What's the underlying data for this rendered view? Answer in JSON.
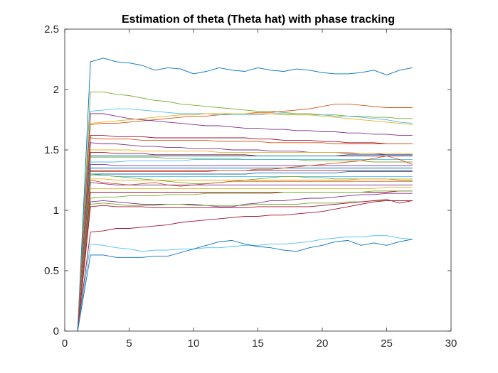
{
  "chart_data": {
    "type": "line",
    "title": "Estimation of theta (Theta hat) with phase tracking",
    "xlabel": "",
    "ylabel": "",
    "xlim": [
      0,
      30
    ],
    "ylim": [
      0,
      2.5
    ],
    "xticks": [
      0,
      5,
      10,
      15,
      20,
      25,
      30
    ],
    "yticks": [
      0,
      0.5,
      1,
      1.5,
      2,
      2.5
    ],
    "xtick_labels": [
      "0",
      "5",
      "10",
      "15",
      "20",
      "25",
      "30"
    ],
    "ytick_labels": [
      "0",
      "0.5",
      "1",
      "1.5",
      "2",
      "2.5"
    ],
    "grid": false,
    "legend": "none",
    "x": [
      1,
      2,
      3,
      4,
      5,
      6,
      7,
      8,
      9,
      10,
      11,
      12,
      13,
      14,
      15,
      16,
      17,
      18,
      19,
      20,
      21,
      22,
      23,
      24,
      25,
      26,
      27
    ],
    "series": [
      {
        "color": "#0072BD",
        "values": [
          0,
          2.23,
          2.26,
          2.23,
          2.22,
          2.2,
          2.16,
          2.18,
          2.17,
          2.13,
          2.15,
          2.18,
          2.16,
          2.15,
          2.18,
          2.16,
          2.15,
          2.17,
          2.16,
          2.14,
          2.13,
          2.13,
          2.14,
          2.16,
          2.12,
          2.16,
          2.18
        ]
      },
      {
        "color": "#77AC30",
        "values": [
          0,
          1.98,
          1.98,
          1.96,
          1.95,
          1.93,
          1.91,
          1.9,
          1.88,
          1.87,
          1.86,
          1.85,
          1.84,
          1.83,
          1.82,
          1.82,
          1.81,
          1.8,
          1.8,
          1.79,
          1.79,
          1.78,
          1.78,
          1.77,
          1.77,
          1.76,
          1.76
        ]
      },
      {
        "color": "#D95319",
        "values": [
          0,
          1.71,
          1.72,
          1.72,
          1.73,
          1.74,
          1.75,
          1.76,
          1.77,
          1.78,
          1.78,
          1.79,
          1.8,
          1.8,
          1.81,
          1.81,
          1.82,
          1.83,
          1.84,
          1.86,
          1.88,
          1.88,
          1.87,
          1.86,
          1.85,
          1.85,
          1.85
        ]
      },
      {
        "color": "#4DBEEE",
        "values": [
          0,
          1.82,
          1.83,
          1.84,
          1.84,
          1.83,
          1.82,
          1.81,
          1.8,
          1.8,
          1.8,
          1.79,
          1.79,
          1.79,
          1.79,
          1.8,
          1.8,
          1.79,
          1.79,
          1.79,
          1.78,
          1.78,
          1.77,
          1.76,
          1.75,
          1.73,
          1.72
        ]
      },
      {
        "color": "#7E2F8E",
        "values": [
          0,
          1.8,
          1.8,
          1.78,
          1.76,
          1.75,
          1.74,
          1.73,
          1.72,
          1.71,
          1.7,
          1.7,
          1.69,
          1.68,
          1.68,
          1.67,
          1.67,
          1.66,
          1.66,
          1.65,
          1.65,
          1.64,
          1.64,
          1.63,
          1.63,
          1.62,
          1.62
        ]
      },
      {
        "color": "#EDB120",
        "values": [
          0,
          1.72,
          1.73,
          1.74,
          1.75,
          1.76,
          1.77,
          1.78,
          1.79,
          1.79,
          1.8,
          1.8,
          1.8,
          1.8,
          1.8,
          1.8,
          1.79,
          1.79,
          1.79,
          1.78,
          1.77,
          1.76,
          1.75,
          1.74,
          1.73,
          1.72,
          1.71
        ]
      },
      {
        "color": "#A2142F",
        "values": [
          0,
          1.62,
          1.62,
          1.61,
          1.61,
          1.61,
          1.6,
          1.6,
          1.6,
          1.6,
          1.6,
          1.6,
          1.6,
          1.6,
          1.59,
          1.59,
          1.58,
          1.58,
          1.58,
          1.57,
          1.57,
          1.56,
          1.56,
          1.56,
          1.55,
          1.55,
          1.55
        ]
      },
      {
        "color": "#D95319",
        "values": [
          0,
          1.6,
          1.59,
          1.59,
          1.59,
          1.58,
          1.58,
          1.58,
          1.58,
          1.58,
          1.58,
          1.57,
          1.57,
          1.57,
          1.57,
          1.56,
          1.56,
          1.56,
          1.56,
          1.56,
          1.55,
          1.55,
          1.55,
          1.55,
          1.55,
          1.55,
          1.55
        ]
      },
      {
        "color": "#7E2F8E",
        "values": [
          0,
          1.56,
          1.55,
          1.55,
          1.54,
          1.53,
          1.53,
          1.52,
          1.52,
          1.51,
          1.51,
          1.51,
          1.5,
          1.5,
          1.5,
          1.49,
          1.49,
          1.49,
          1.48,
          1.48,
          1.48,
          1.47,
          1.47,
          1.47,
          1.46,
          1.46,
          1.46
        ]
      },
      {
        "color": "#EDB120",
        "values": [
          0,
          1.5,
          1.5,
          1.5,
          1.5,
          1.49,
          1.49,
          1.49,
          1.49,
          1.49,
          1.49,
          1.48,
          1.48,
          1.48,
          1.48,
          1.48,
          1.48,
          1.48,
          1.48,
          1.48,
          1.48,
          1.48,
          1.47,
          1.47,
          1.47,
          1.47,
          1.47
        ]
      },
      {
        "color": "#A2142F",
        "values": [
          0,
          1.48,
          1.48,
          1.47,
          1.47,
          1.47,
          1.46,
          1.46,
          1.46,
          1.46,
          1.46,
          1.46,
          1.46,
          1.46,
          1.45,
          1.45,
          1.45,
          1.45,
          1.45,
          1.45,
          1.45,
          1.45,
          1.45,
          1.45,
          1.45,
          1.45,
          1.45
        ]
      },
      {
        "color": "#0072BD",
        "values": [
          0,
          1.45,
          1.45,
          1.45,
          1.45,
          1.45,
          1.45,
          1.45,
          1.45,
          1.45,
          1.45,
          1.45,
          1.45,
          1.45,
          1.45,
          1.45,
          1.45,
          1.45,
          1.45,
          1.45,
          1.45,
          1.46,
          1.46,
          1.46,
          1.46,
          1.46,
          1.46
        ]
      },
      {
        "color": "#77AC30",
        "values": [
          0,
          1.44,
          1.44,
          1.44,
          1.44,
          1.44,
          1.44,
          1.43,
          1.43,
          1.43,
          1.43,
          1.43,
          1.43,
          1.42,
          1.42,
          1.42,
          1.42,
          1.42,
          1.41,
          1.41,
          1.41,
          1.41,
          1.41,
          1.4,
          1.4,
          1.4,
          1.4
        ]
      },
      {
        "color": "#4DBEEE",
        "values": [
          0,
          1.4,
          1.4,
          1.4,
          1.41,
          1.41,
          1.41,
          1.41,
          1.41,
          1.42,
          1.42,
          1.42,
          1.42,
          1.42,
          1.42,
          1.42,
          1.42,
          1.42,
          1.42,
          1.42,
          1.42,
          1.42,
          1.42,
          1.42,
          1.42,
          1.42,
          1.42
        ]
      },
      {
        "color": "#7E2F8E",
        "values": [
          0,
          1.38,
          1.38,
          1.37,
          1.37,
          1.37,
          1.37,
          1.37,
          1.37,
          1.37,
          1.37,
          1.37,
          1.37,
          1.37,
          1.37,
          1.37,
          1.37,
          1.37,
          1.37,
          1.37,
          1.37,
          1.37,
          1.37,
          1.37,
          1.37,
          1.37,
          1.37
        ]
      },
      {
        "color": "#0072BD",
        "values": [
          0,
          1.35,
          1.35,
          1.35,
          1.35,
          1.35,
          1.35,
          1.35,
          1.35,
          1.35,
          1.35,
          1.35,
          1.35,
          1.35,
          1.35,
          1.35,
          1.35,
          1.35,
          1.35,
          1.35,
          1.35,
          1.35,
          1.35,
          1.35,
          1.35,
          1.35,
          1.35
        ]
      },
      {
        "color": "#A2142F",
        "values": [
          0,
          1.33,
          1.33,
          1.33,
          1.33,
          1.33,
          1.33,
          1.33,
          1.33,
          1.33,
          1.33,
          1.33,
          1.33,
          1.33,
          1.33,
          1.33,
          1.33,
          1.33,
          1.33,
          1.33,
          1.33,
          1.33,
          1.33,
          1.33,
          1.33,
          1.33,
          1.33
        ]
      },
      {
        "color": "#D95319",
        "values": [
          0,
          1.32,
          1.32,
          1.32,
          1.32,
          1.32,
          1.32,
          1.32,
          1.32,
          1.32,
          1.32,
          1.33,
          1.33,
          1.33,
          1.34,
          1.34,
          1.35,
          1.36,
          1.37,
          1.38,
          1.39,
          1.4,
          1.41,
          1.43,
          1.45,
          1.42,
          1.38
        ]
      },
      {
        "color": "#0072BD",
        "values": [
          0,
          1.3,
          1.3,
          1.3,
          1.3,
          1.3,
          1.3,
          1.3,
          1.3,
          1.3,
          1.3,
          1.3,
          1.3,
          1.3,
          1.31,
          1.31,
          1.31,
          1.31,
          1.31,
          1.31,
          1.31,
          1.32,
          1.32,
          1.32,
          1.32,
          1.32,
          1.32
        ]
      },
      {
        "color": "#4DBEEE",
        "values": [
          0,
          1.29,
          1.29,
          1.28,
          1.28,
          1.28,
          1.28,
          1.28,
          1.28,
          1.28,
          1.28,
          1.28,
          1.28,
          1.28,
          1.28,
          1.28,
          1.28,
          1.28,
          1.28,
          1.28,
          1.28,
          1.28,
          1.28,
          1.28,
          1.28,
          1.28,
          1.28
        ]
      },
      {
        "color": "#77AC30",
        "values": [
          0,
          1.3,
          1.29,
          1.28,
          1.27,
          1.26,
          1.25,
          1.24,
          1.23,
          1.22,
          1.22,
          1.23,
          1.24,
          1.25,
          1.26,
          1.27,
          1.28,
          1.28,
          1.27,
          1.27,
          1.26,
          1.26,
          1.26,
          1.26,
          1.26,
          1.25,
          1.25
        ]
      },
      {
        "color": "#EDB120",
        "values": [
          0,
          1.26,
          1.26,
          1.25,
          1.25,
          1.25,
          1.25,
          1.25,
          1.25,
          1.25,
          1.25,
          1.25,
          1.25,
          1.25,
          1.25,
          1.25,
          1.25,
          1.25,
          1.25,
          1.25,
          1.25,
          1.25,
          1.26,
          1.26,
          1.26,
          1.26,
          1.26
        ]
      },
      {
        "color": "#D95319",
        "values": [
          0,
          1.25,
          1.23,
          1.22,
          1.21,
          1.22,
          1.23,
          1.21,
          1.2,
          1.21,
          1.22,
          1.23,
          1.24,
          1.24,
          1.24,
          1.24,
          1.24,
          1.24,
          1.24,
          1.24,
          1.24,
          1.24,
          1.24,
          1.24,
          1.24,
          1.24,
          1.24
        ]
      },
      {
        "color": "#7E2F8E",
        "values": [
          0,
          1.23,
          1.22,
          1.21,
          1.21,
          1.21,
          1.21,
          1.21,
          1.21,
          1.21,
          1.21,
          1.21,
          1.21,
          1.21,
          1.21,
          1.21,
          1.21,
          1.21,
          1.21,
          1.21,
          1.21,
          1.21,
          1.21,
          1.21,
          1.21,
          1.21,
          1.21
        ]
      },
      {
        "color": "#EDB120",
        "values": [
          0,
          1.18,
          1.18,
          1.18,
          1.18,
          1.18,
          1.18,
          1.18,
          1.18,
          1.18,
          1.18,
          1.18,
          1.18,
          1.18,
          1.18,
          1.18,
          1.18,
          1.18,
          1.18,
          1.18,
          1.18,
          1.18,
          1.18,
          1.18,
          1.19,
          1.19,
          1.19
        ]
      },
      {
        "color": "#A2142F",
        "values": [
          0,
          1.15,
          1.15,
          1.15,
          1.15,
          1.15,
          1.15,
          1.15,
          1.15,
          1.15,
          1.15,
          1.15,
          1.15,
          1.15,
          1.15,
          1.15,
          1.15,
          1.15,
          1.15,
          1.15,
          1.15,
          1.15,
          1.15,
          1.15,
          1.15,
          1.16,
          1.16
        ]
      },
      {
        "color": "#77AC30",
        "values": [
          0,
          1.1,
          1.11,
          1.11,
          1.12,
          1.12,
          1.12,
          1.13,
          1.13,
          1.13,
          1.14,
          1.14,
          1.14,
          1.14,
          1.14,
          1.14,
          1.15,
          1.15,
          1.15,
          1.15,
          1.15,
          1.15,
          1.15,
          1.16,
          1.16,
          1.16,
          1.16
        ]
      },
      {
        "color": "#7E2F8E",
        "values": [
          0,
          1.07,
          1.08,
          1.07,
          1.06,
          1.05,
          1.05,
          1.05,
          1.05,
          1.05,
          1.04,
          1.03,
          1.03,
          1.05,
          1.06,
          1.08,
          1.08,
          1.09,
          1.1,
          1.1,
          1.11,
          1.12,
          1.13,
          1.13,
          1.14,
          1.14,
          1.14
        ]
      },
      {
        "color": "#77AC30",
        "values": [
          0,
          1.05,
          1.06,
          1.05,
          1.04,
          1.04,
          1.04,
          1.05,
          1.05,
          1.04,
          1.04,
          1.04,
          1.04,
          1.04,
          1.05,
          1.05,
          1.05,
          1.05,
          1.06,
          1.06,
          1.06,
          1.07,
          1.07,
          1.08,
          1.08,
          1.08,
          1.08
        ]
      },
      {
        "color": "#A2142F",
        "values": [
          0,
          1.03,
          1.04,
          1.03,
          1.03,
          1.03,
          1.02,
          1.02,
          1.02,
          1.02,
          1.02,
          1.02,
          1.02,
          1.02,
          1.03,
          1.03,
          1.03,
          1.03,
          1.03,
          1.04,
          1.05,
          1.06,
          1.07,
          1.08,
          1.09,
          1.06,
          1.08
        ]
      },
      {
        "color": "#A2142F",
        "values": [
          0,
          0.82,
          0.83,
          0.85,
          0.85,
          0.86,
          0.87,
          0.88,
          0.9,
          0.91,
          0.92,
          0.93,
          0.94,
          0.95,
          0.95,
          0.96,
          0.96,
          0.97,
          0.98,
          0.99,
          1.01,
          1.03,
          1.05,
          1.07,
          1.08,
          1.08,
          1.08
        ]
      },
      {
        "color": "#4DBEEE",
        "values": [
          0,
          0.72,
          0.71,
          0.69,
          0.68,
          0.66,
          0.67,
          0.67,
          0.68,
          0.68,
          0.69,
          0.69,
          0.7,
          0.71,
          0.71,
          0.72,
          0.72,
          0.73,
          0.74,
          0.76,
          0.77,
          0.78,
          0.78,
          0.79,
          0.79,
          0.77,
          0.76
        ]
      },
      {
        "color": "#0072BD",
        "values": [
          0,
          0.63,
          0.63,
          0.61,
          0.61,
          0.61,
          0.62,
          0.62,
          0.65,
          0.68,
          0.71,
          0.74,
          0.75,
          0.72,
          0.7,
          0.69,
          0.67,
          0.66,
          0.69,
          0.71,
          0.74,
          0.75,
          0.71,
          0.73,
          0.71,
          0.74,
          0.76
        ]
      }
    ]
  }
}
